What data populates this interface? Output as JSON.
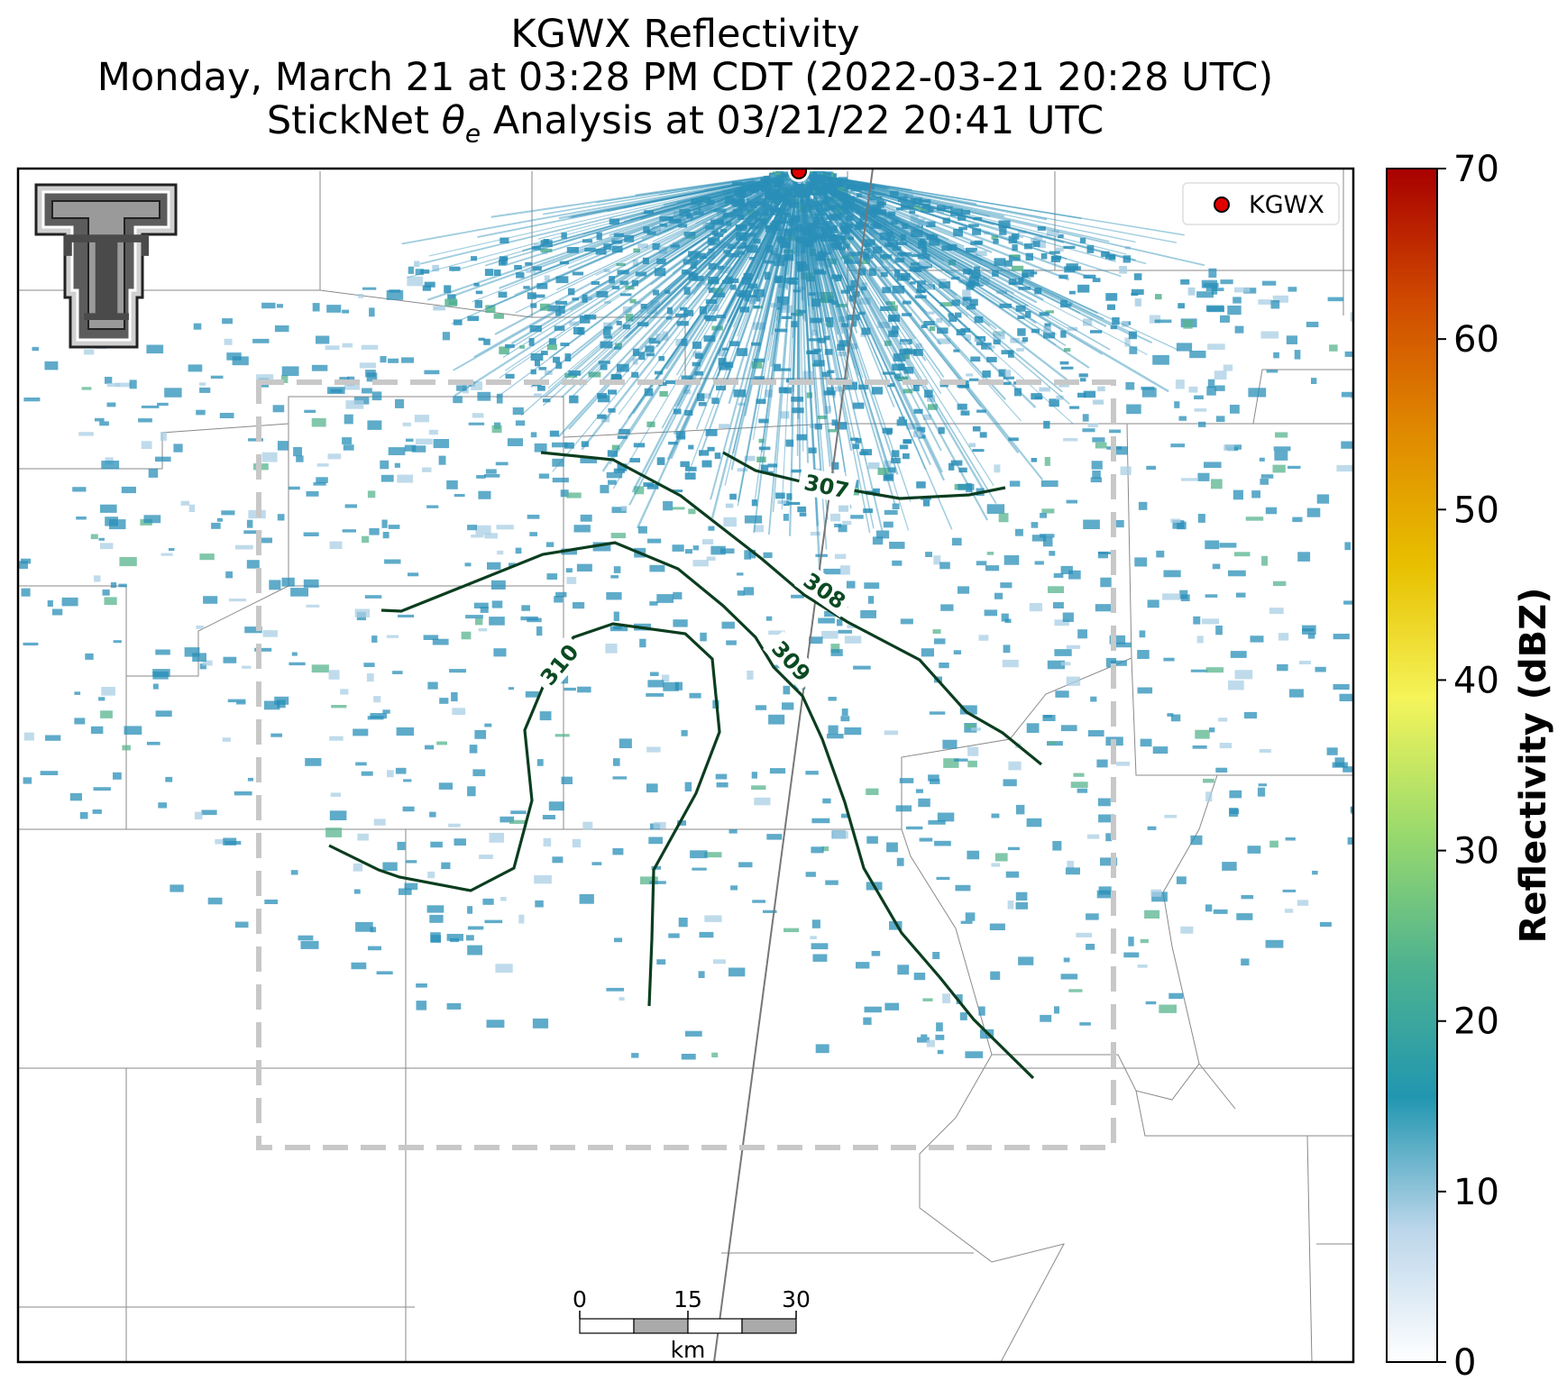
{
  "title": {
    "line1": "KGWX Reflectivity",
    "line2": "Monday, March 21 at 03:28 PM CDT (2022-03-21 20:28 UTC)",
    "line3_prefix": "StickNet ",
    "line3_symbol": "θ",
    "line3_subscript": "e",
    "line3_suffix": " Analysis at 03/21/22 20:41 UTC"
  },
  "legend": {
    "label": "KGWX",
    "marker_color": "#e00000"
  },
  "colorbar": {
    "label": "Reflectivity (dBZ)",
    "ticks": [
      "70",
      "60",
      "50",
      "40",
      "30",
      "20",
      "10",
      "0"
    ],
    "min": 0,
    "max": 70,
    "colors": [
      "#ffffff",
      "#bcd6ea",
      "#2196b0",
      "#4fb38f",
      "#9ada6c",
      "#f4f45a",
      "#e8c000",
      "#e08a00",
      "#d04a00",
      "#a80000"
    ]
  },
  "contours": {
    "color": "#0b3d1f",
    "labels": [
      "307",
      "308",
      "309",
      "310"
    ]
  },
  "scale_bar": {
    "ticks": [
      "0",
      "15",
      "30"
    ],
    "unit": "km"
  },
  "logo": {
    "text": "T"
  },
  "colors": {
    "echo": "#2a8fb8",
    "box": "#c8c8c8",
    "county_lines": "#8a8a8a",
    "radar_marker": "#e00000"
  }
}
